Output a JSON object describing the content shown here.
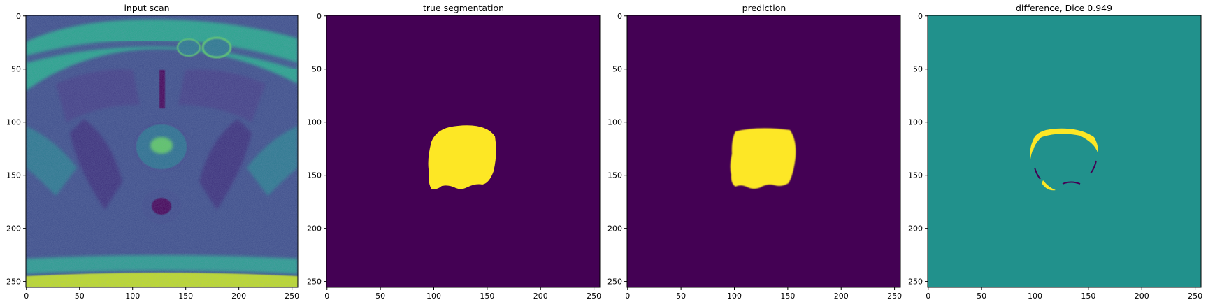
{
  "panels": [
    {
      "title": "input scan",
      "kind": "mri",
      "image_size": [
        256,
        256
      ],
      "xticks": [
        0,
        50,
        100,
        150,
        200,
        250
      ],
      "yticks": [
        0,
        50,
        100,
        150,
        200,
        250
      ],
      "colormap": "viridis"
    },
    {
      "title": "true segmentation",
      "kind": "mask",
      "image_size": [
        256,
        256
      ],
      "xticks": [
        0,
        50,
        100,
        150,
        200,
        250
      ],
      "yticks": [
        0,
        50,
        100,
        150,
        200,
        250
      ],
      "background_color": "#440154",
      "foreground_color": "#fde725"
    },
    {
      "title": "prediction",
      "kind": "mask",
      "image_size": [
        256,
        256
      ],
      "xticks": [
        0,
        50,
        100,
        150,
        200,
        250
      ],
      "yticks": [
        0,
        50,
        100,
        150,
        200,
        250
      ],
      "background_color": "#440154",
      "foreground_color": "#fde725"
    },
    {
      "title": "difference, Dice 0.949",
      "kind": "difference",
      "image_size": [
        256,
        256
      ],
      "xticks": [
        0,
        50,
        100,
        150,
        200,
        250
      ],
      "yticks": [
        0,
        50,
        100,
        150,
        200,
        250
      ],
      "background_color": "#21918c",
      "positive_color": "#fde725",
      "negative_color": "#440154"
    }
  ]
}
